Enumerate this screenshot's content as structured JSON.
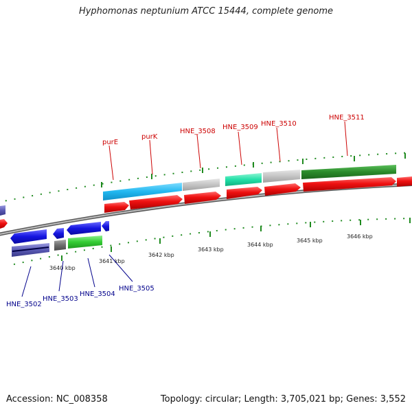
{
  "title": "Hyphomonas neptunium ATCC 15444, complete genome",
  "footer": {
    "accession": "Accession: NC_008358",
    "stats": "Topology: circular; Length: 3,705,021 bp; Genes: 3,552"
  },
  "colors": {
    "backbone": "#8c8c8c",
    "tick": "#1e8a1e",
    "top_label": "#cc0000",
    "bottom_label": "#00008b",
    "cds": "#ee1111",
    "cds_dark": "#3333cc"
  },
  "kbp_labels": [
    "3640 kbp",
    "3641 kbp",
    "3642 kbp",
    "3643 kbp",
    "3644 kbp",
    "3645 kbp",
    "3646 kbp"
  ],
  "top_genes": [
    "purE",
    "purK",
    "HNE_3508",
    "HNE_3509",
    "HNE_3510",
    "HNE_3511"
  ],
  "bottom_genes": [
    "HNE_3502",
    "HNE_3503",
    "HNE_3504",
    "HNE_3505"
  ]
}
